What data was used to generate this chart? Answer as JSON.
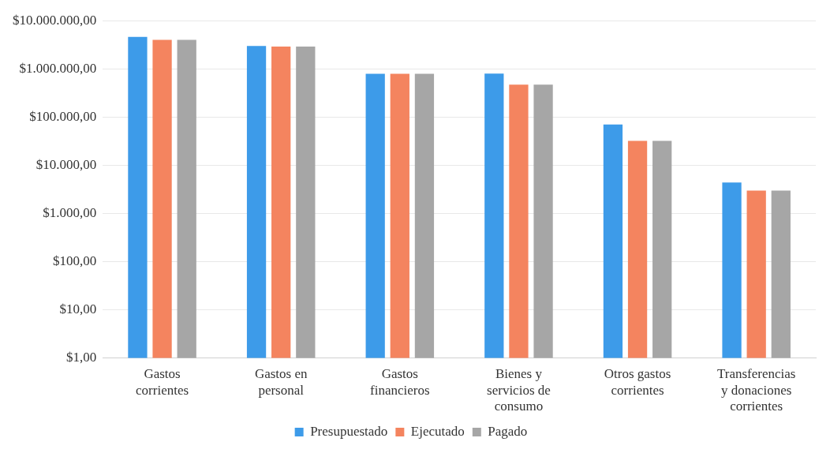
{
  "chart_data": {
    "type": "bar",
    "categories": [
      "Gastos corrientes",
      "Gastos en personal",
      "Gastos financieros",
      "Bienes y servicios de consumo",
      "Otros gastos corrientes",
      "Transferencias y donaciones corrientes"
    ],
    "series": [
      {
        "name": "Presupuestado",
        "color": "#3d9be9",
        "values": [
          4600000,
          3000000,
          790000,
          800000,
          70000,
          4400
        ]
      },
      {
        "name": "Ejecutado",
        "color": "#f4845f",
        "values": [
          4000000,
          2900000,
          790000,
          470000,
          32000,
          3000
        ]
      },
      {
        "name": "Pagado",
        "color": "#a6a6a6",
        "values": [
          4000000,
          2900000,
          790000,
          470000,
          32000,
          3000
        ]
      }
    ],
    "log": "y",
    "ylim": [
      1,
      10000000
    ],
    "yticks": [
      {
        "value": 1,
        "label": "$1,00"
      },
      {
        "value": 10,
        "label": "$10,00"
      },
      {
        "value": 100,
        "label": "$100,00"
      },
      {
        "value": 1000,
        "label": "$1.000,00"
      },
      {
        "value": 10000,
        "label": "$10.000,00"
      },
      {
        "value": 100000,
        "label": "$100.000,00"
      },
      {
        "value": 1000000,
        "label": "$1.000.000,00"
      },
      {
        "value": 10000000,
        "label": "$10.000.000,00"
      }
    ],
    "grid": "y",
    "legend": "bottom"
  }
}
